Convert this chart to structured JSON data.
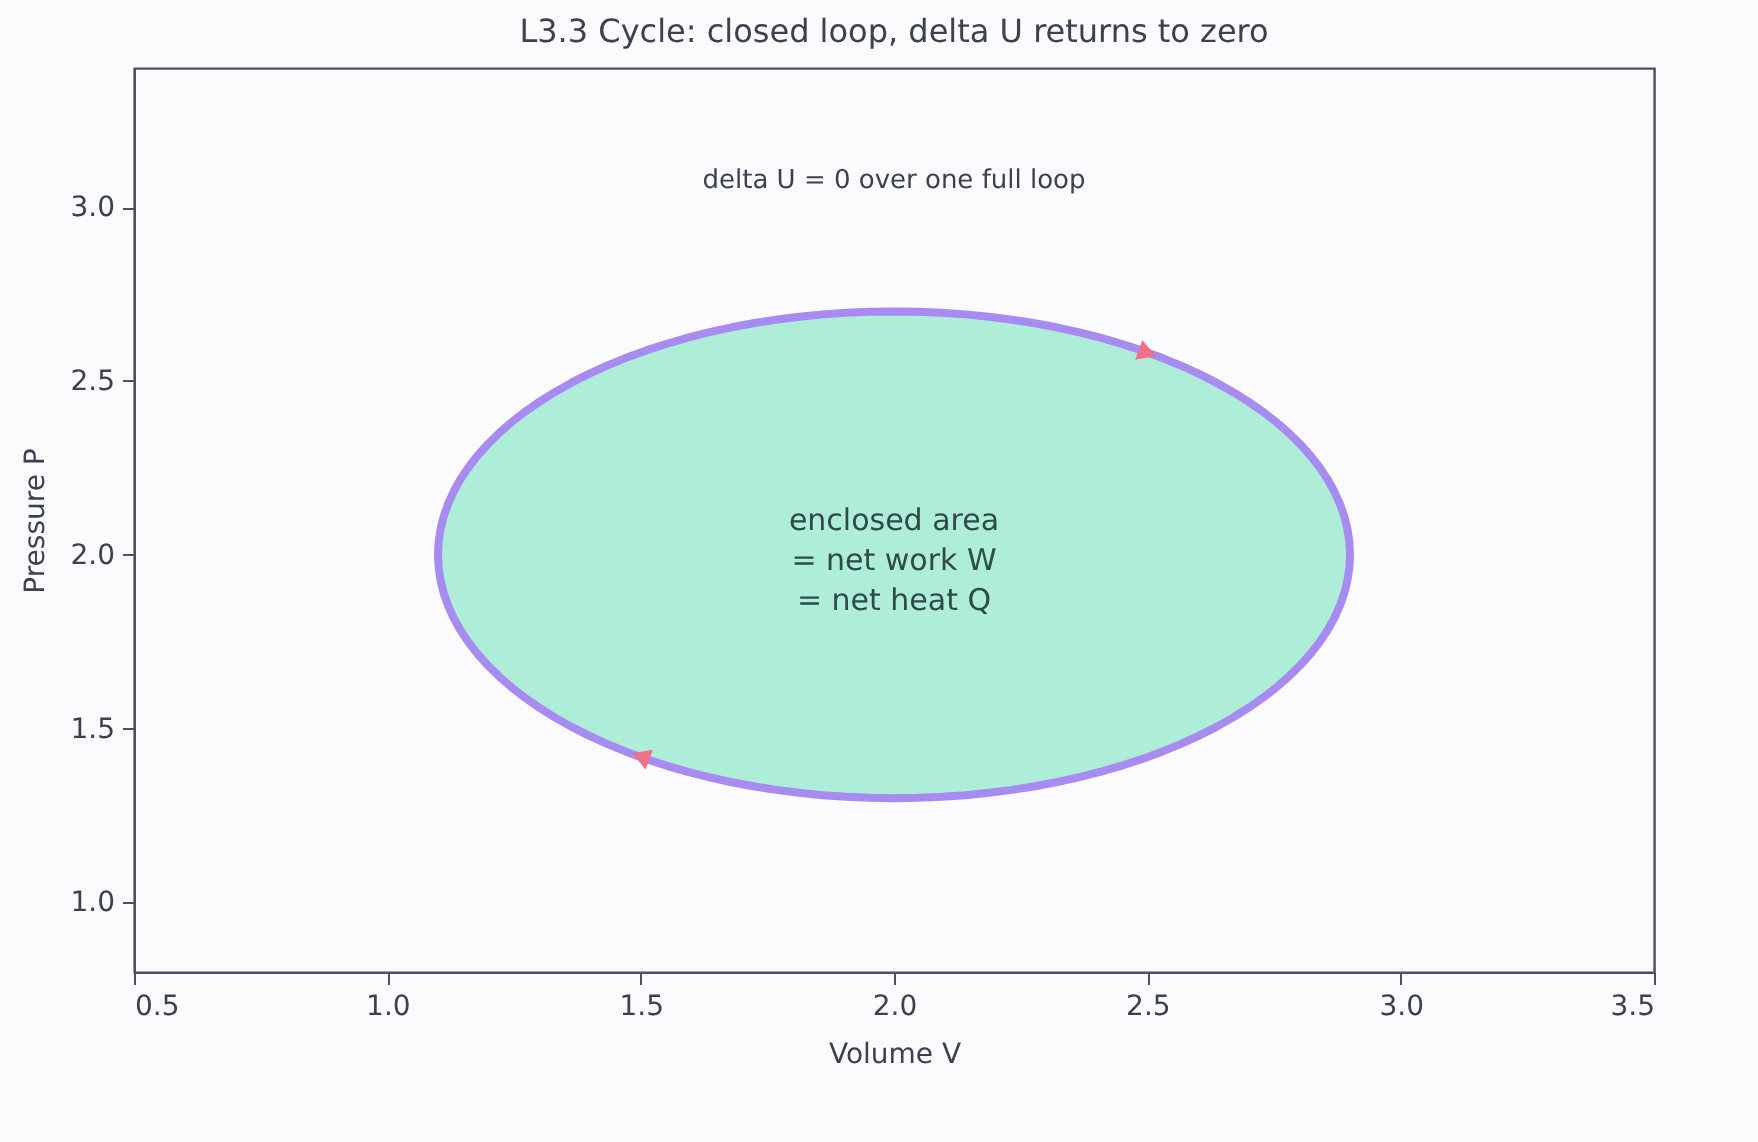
{
  "chart_data": {
    "type": "scatter",
    "grid": false,
    "marker": "triangle",
    "title": "L3.3  Cycle: closed loop, delta U returns to zero",
    "xlabel": "Volume V",
    "ylabel": "Pressure P",
    "xlim": [
      0.5,
      3.5
    ],
    "xticks": [
      0.5,
      {
        "value": 1,
        "label": "1.0"
      },
      1.5,
      {
        "value": 2,
        "label": "2.0"
      },
      2.5,
      {
        "value": 3,
        "label": "3.0"
      },
      3.5
    ],
    "ylim": [
      0.8,
      3.4
    ],
    "yticks": [
      {
        "value": 1,
        "label": "1.0"
      },
      1.5,
      {
        "value": 2,
        "label": "2.0"
      },
      2.5,
      {
        "value": 3,
        "label": "3.0"
      }
    ],
    "series": [
      {
        "color": "#f07088",
        "x": [
          2.5,
          1.5
        ],
        "values": [
          2.58,
          1.42
        ]
      }
    ],
    "annotations": [
      "delta U = 0 over one full loop",
      "enclosed area\n= net work W\n= net heat Q"
    ]
  }
}
